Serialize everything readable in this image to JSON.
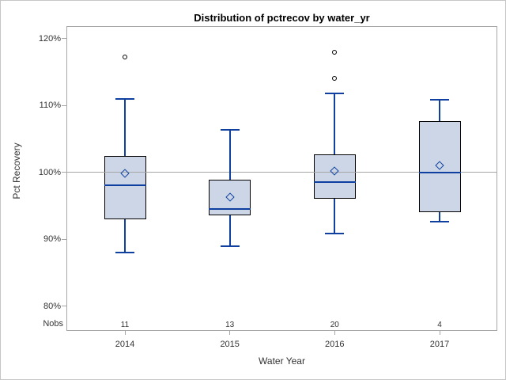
{
  "chart_data": {
    "type": "box",
    "title": "Distribution of pctrecov by water_yr",
    "xlabel": "Water Year",
    "ylabel": "Pct Recovery",
    "nobs_label": "Nobs",
    "categories": [
      "2014",
      "2015",
      "2016",
      "2017"
    ],
    "nobs": [
      "11",
      "13",
      "20",
      "4"
    ],
    "y_ticks": [
      80,
      90,
      100,
      110,
      120
    ],
    "y_tick_suffix": "%",
    "ylim": [
      76,
      121.5
    ],
    "reference_line": 100,
    "grid": "off",
    "legend": "none",
    "groups": [
      {
        "category": "2014",
        "n": 11,
        "whisker_low": 88.0,
        "q1": 93.0,
        "median": 98.1,
        "q3": 102.4,
        "whisker_high": 111.0,
        "mean": 99.8,
        "outliers": [
          117.3
        ]
      },
      {
        "category": "2015",
        "n": 13,
        "whisker_low": 89.0,
        "q1": 93.6,
        "median": 94.5,
        "q3": 98.9,
        "whisker_high": 106.4,
        "mean": 96.3,
        "outliers": []
      },
      {
        "category": "2016",
        "n": 20,
        "whisker_low": 90.9,
        "q1": 96.1,
        "median": 98.5,
        "q3": 102.7,
        "whisker_high": 111.8,
        "mean": 100.2,
        "outliers": [
          114.0,
          118.0
        ]
      },
      {
        "category": "2017",
        "n": 4,
        "whisker_low": 92.6,
        "q1": 94.0,
        "median": 100.0,
        "q3": 107.6,
        "whisker_high": 110.8,
        "mean": 101.0,
        "outliers": []
      }
    ],
    "colors": {
      "box_fill": "#ccd6e6",
      "box_border": "#000000",
      "blue_line": "#10409f",
      "reference_line": "#a6a6a6",
      "axis_line": "#a6a6a6",
      "outlier_stroke": "#000000"
    }
  }
}
